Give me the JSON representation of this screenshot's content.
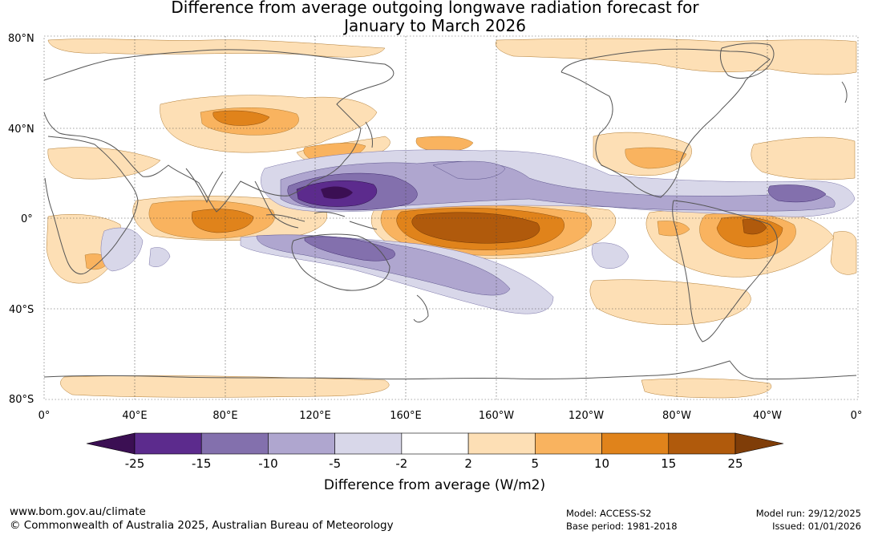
{
  "title": {
    "line1": "Difference from average outgoing longwave radiation forecast for",
    "line2": "January to March 2026"
  },
  "map": {
    "lat_labels": [
      "80°N",
      "40°N",
      "0°",
      "40°S",
      "80°S"
    ],
    "lon_labels": [
      "0°",
      "40°E",
      "80°E",
      "120°E",
      "160°E",
      "160°W",
      "120°W",
      "80°W",
      "40°W",
      "0°"
    ],
    "regions": [
      {
        "name": "purple-anomaly-west-pacific",
        "category": "-25 to -15"
      },
      {
        "name": "orange-anomaly-central-pacific",
        "category": "15 to 25"
      },
      {
        "name": "orange-anomaly-indian-ocean",
        "category": "5 to 10"
      },
      {
        "name": "orange-anomaly-amazon",
        "category": "10 to 15"
      },
      {
        "name": "purple-anomaly-spcz",
        "category": "-10 to -5"
      }
    ]
  },
  "legend": {
    "tick_labels": [
      "-25",
      "-15",
      "-10",
      "-5",
      "-2",
      "2",
      "5",
      "10",
      "15",
      "25"
    ],
    "colors": [
      "#3b0f53",
      "#5c2b8d",
      "#8370ad",
      "#afa6cf",
      "#d8d7e9",
      "#ffffff",
      "#fddfb5",
      "#f9b35f",
      "#e0831b",
      "#b05a0c",
      "#7f3d08"
    ],
    "title": "Difference from average (W/m2)"
  },
  "footer": {
    "url": "www.bom.gov.au/climate",
    "copyright": "© Commonwealth of Australia 2025, Australian Bureau of Meteorology",
    "model": "Model: ACCESS-S2",
    "base_period": "Base period: 1981-2018",
    "model_run": "Model run: 29/12/2025",
    "issued": "Issued: 01/01/2026"
  }
}
